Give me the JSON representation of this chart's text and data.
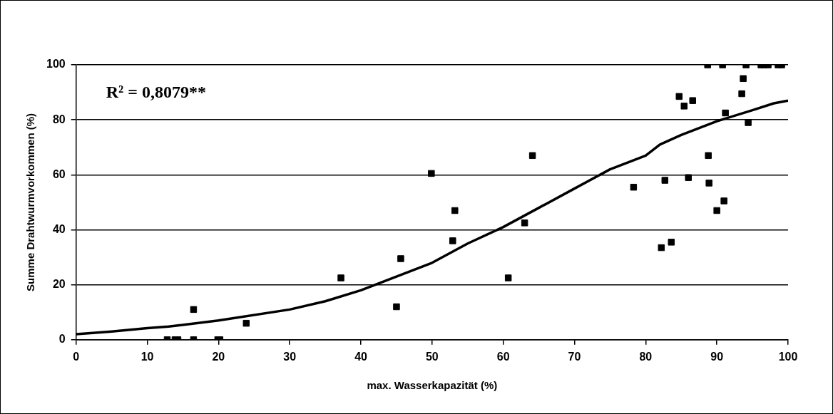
{
  "chart_data": {
    "type": "scatter",
    "xlabel": "max. Wasserkapazität (%)",
    "ylabel": "Summe Drahtwurmvorkommen (%)",
    "annotations": [
      "R² = 0,8079**"
    ],
    "xlim": [
      0,
      100
    ],
    "xticks": [
      0,
      10,
      20,
      30,
      40,
      50,
      60,
      70,
      80,
      90,
      100
    ],
    "ylim": [
      0,
      100
    ],
    "yticks": [
      0,
      20,
      40,
      60,
      80,
      100
    ],
    "grid": "y",
    "legend": false,
    "marker": "square",
    "series": [
      {
        "type": "scatter",
        "color": "#000000",
        "x": [
          12.8,
          13.9,
          14.3,
          16.5,
          16.5,
          19.9,
          20.2,
          23.9,
          37.2,
          45,
          45.6,
          49.9,
          52.9,
          53.2,
          60.7,
          63,
          64.1,
          78.3,
          82.2,
          82.7,
          83.6,
          84.7,
          85.4,
          86,
          86.6,
          88.7,
          88.8,
          88.9,
          90,
          90.8,
          91,
          91.2,
          93.5,
          93.7,
          94.1,
          94.4,
          96.2,
          96.6,
          97.2,
          98.6,
          99.1
        ],
        "values": [
          0,
          0,
          0,
          11,
          0,
          0,
          0,
          6,
          22.5,
          12,
          29.5,
          60.5,
          36,
          47,
          22.5,
          42.5,
          67,
          55.5,
          33.5,
          58,
          35.5,
          88.5,
          85,
          59,
          87,
          100,
          67,
          57,
          47,
          100,
          50.5,
          82.5,
          89.5,
          95,
          100,
          79,
          100,
          100,
          100,
          100,
          100
        ]
      },
      {
        "type": "line",
        "color": "#000000",
        "marker": "none",
        "line_style": "solid",
        "x": [
          0,
          5,
          10,
          13,
          20,
          30,
          35,
          40,
          45,
          50,
          55,
          60,
          65,
          70,
          75,
          80,
          82,
          85,
          90,
          95,
          98,
          100
        ],
        "values": [
          2,
          3,
          4.2,
          4.8,
          7,
          11,
          14,
          18,
          23,
          28,
          35,
          41,
          48,
          55,
          62,
          67,
          71,
          74.5,
          79.5,
          83.5,
          86,
          87
        ]
      }
    ]
  }
}
